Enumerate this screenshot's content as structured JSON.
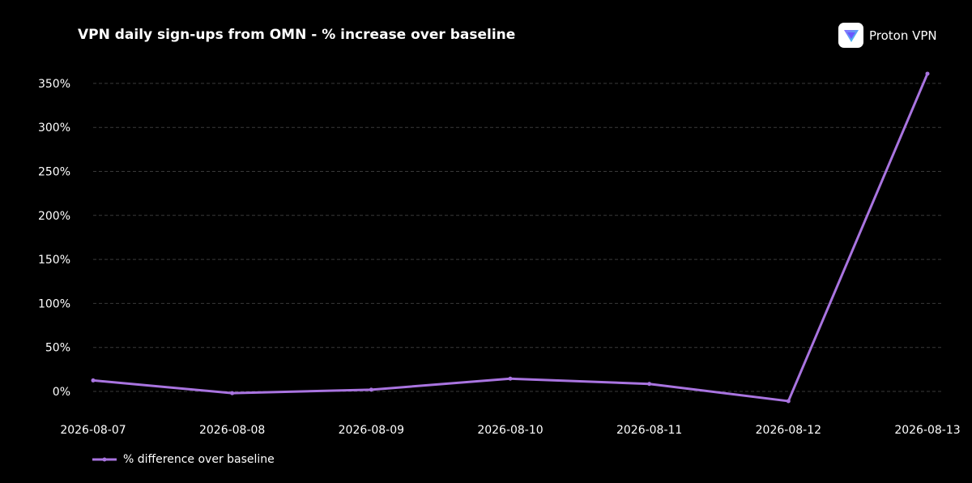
{
  "brand": {
    "name": "Proton VPN",
    "logo_icon": "proton-vpn-shield-icon"
  },
  "chart_data": {
    "type": "line",
    "title": "VPN daily sign-ups from OMN - % increase over baseline",
    "xlabel": "",
    "ylabel": "",
    "x": [
      "2026-08-07",
      "2026-08-08",
      "2026-08-09",
      "2026-08-10",
      "2026-08-11",
      "2026-08-12",
      "2026-08-13"
    ],
    "y_ticks": [
      "0%",
      "50%",
      "100%",
      "150%",
      "200%",
      "250%",
      "300%",
      "350%"
    ],
    "y_tick_values": [
      0,
      50,
      100,
      150,
      200,
      250,
      300,
      350
    ],
    "ylim": [
      -20,
      370
    ],
    "grid": true,
    "legend_position": "bottom-left",
    "series": [
      {
        "name": "% difference over baseline",
        "color": "#a974e0",
        "values": [
          12.5,
          -2,
          2,
          14.5,
          8.5,
          -11,
          361
        ]
      }
    ]
  }
}
